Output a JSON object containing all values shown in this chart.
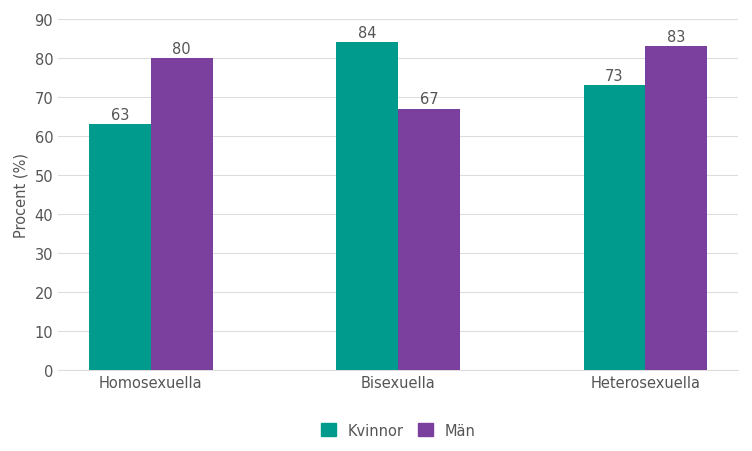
{
  "categories": [
    "Homosexuella",
    "Bisexuella",
    "Heterosexuella"
  ],
  "kvinnor_values": [
    63,
    84,
    73
  ],
  "man_values": [
    80,
    67,
    83
  ],
  "kvinnor_color": "#009B8D",
  "man_color": "#7B3F9E",
  "ylabel": "Procent (%)",
  "ylim": [
    0,
    90
  ],
  "yticks": [
    0,
    10,
    20,
    30,
    40,
    50,
    60,
    70,
    80,
    90
  ],
  "legend_labels": [
    "Kvinnor",
    "Män"
  ],
  "bar_width": 0.25,
  "background_color": "#ffffff",
  "plot_bg_color": "#ffffff",
  "label_fontsize": 10.5,
  "tick_fontsize": 10.5,
  "ylabel_fontsize": 10.5,
  "grid_color": "#dddddd",
  "text_color": "#555555"
}
